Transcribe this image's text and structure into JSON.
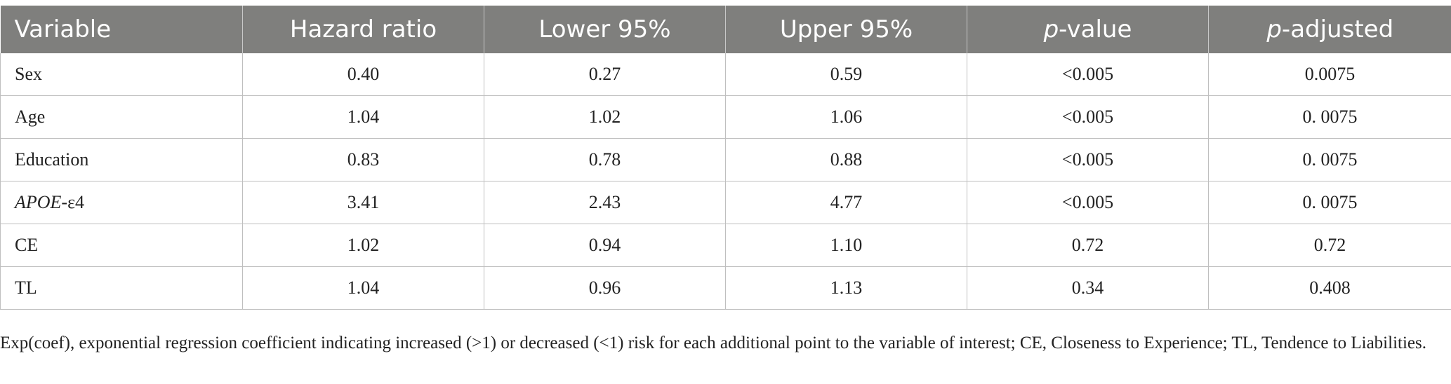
{
  "table": {
    "headers": [
      {
        "prefix": "",
        "main": "Variable"
      },
      {
        "prefix": "",
        "main": "Hazard ratio"
      },
      {
        "prefix": "",
        "main": "Lower 95%"
      },
      {
        "prefix": "",
        "main": "Upper 95%"
      },
      {
        "prefix": "p",
        "main": "-value"
      },
      {
        "prefix": "p",
        "main": "-adjusted"
      }
    ],
    "rows": [
      {
        "variable": "Sex",
        "suffix": "",
        "hazard_ratio": "0.40",
        "lower": "0.27",
        "upper": "0.59",
        "p_value": "<0.005",
        "p_adjusted": "0.0075"
      },
      {
        "variable": "Age",
        "suffix": "",
        "hazard_ratio": "1.04",
        "lower": "1.02",
        "upper": "1.06",
        "p_value": "<0.005",
        "p_adjusted": "0. 0075"
      },
      {
        "variable": "Education",
        "suffix": "",
        "hazard_ratio": "0.83",
        "lower": "0.78",
        "upper": "0.88",
        "p_value": "<0.005",
        "p_adjusted": "0. 0075"
      },
      {
        "variable": "APOE",
        "suffix": "-ε4",
        "hazard_ratio": "3.41",
        "lower": "2.43",
        "upper": "4.77",
        "p_value": "<0.005",
        "p_adjusted": "0. 0075"
      },
      {
        "variable": "CE",
        "suffix": "",
        "hazard_ratio": "1.02",
        "lower": "0.94",
        "upper": "1.10",
        "p_value": "0.72",
        "p_adjusted": "0.72"
      },
      {
        "variable": "TL",
        "suffix": "",
        "hazard_ratio": "1.04",
        "lower": "0.96",
        "upper": "1.13",
        "p_value": "0.34",
        "p_adjusted": "0.408"
      }
    ]
  },
  "footnote": "Exp(coef), exponential regression coefficient indicating increased (>1) or decreased (<1) risk for each additional point to the variable of interest; CE, Closeness to Experience; TL, Tendence to Liabilities.",
  "colors": {
    "header_bg": "#7f7f7d",
    "header_text": "#ffffff",
    "grid": "#bfbfbf"
  }
}
